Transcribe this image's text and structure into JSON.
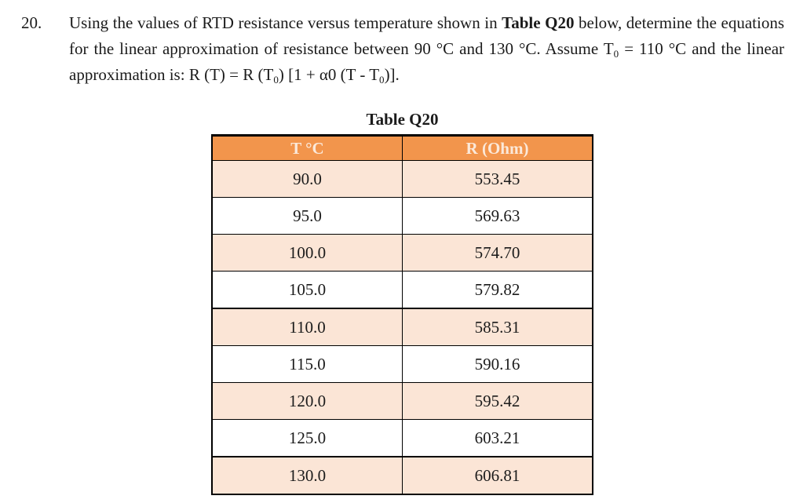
{
  "colors": {
    "header_bg": "#F2954C",
    "header_text": "#FBE9DA",
    "row_alt_bg": "#FBE5D6",
    "row_bg": "#FFFFFF",
    "border": "#000000",
    "text": "#1B1B1B"
  },
  "question": {
    "number": "20.",
    "text": {
      "part1": "Using the values of RTD resistance versus temperature shown in ",
      "table_ref": "Table Q20",
      "part2": " below, determine the equations for the linear approximation of resistance between 90 °C and 130 °C. Assume T",
      "sub_a": "0",
      "part3": " = 110 °C and the linear approximation is: R (T) = R (T",
      "sub_b": "0",
      "part4": ") [1 + α0 (T - T",
      "sub_c": "0",
      "part5": ")]."
    }
  },
  "table": {
    "title": "Table Q20",
    "columns": [
      "T °C",
      "R (Ohm)"
    ],
    "rows": [
      [
        "90.0",
        "553.45"
      ],
      [
        "95.0",
        "569.63"
      ],
      [
        "100.0",
        "574.70"
      ],
      [
        "105.0",
        "579.82"
      ],
      [
        "110.0",
        "585.31"
      ],
      [
        "115.0",
        "590.16"
      ],
      [
        "120.0",
        "595.42"
      ],
      [
        "125.0",
        "603.21"
      ],
      [
        "130.0",
        "606.81"
      ]
    ]
  }
}
